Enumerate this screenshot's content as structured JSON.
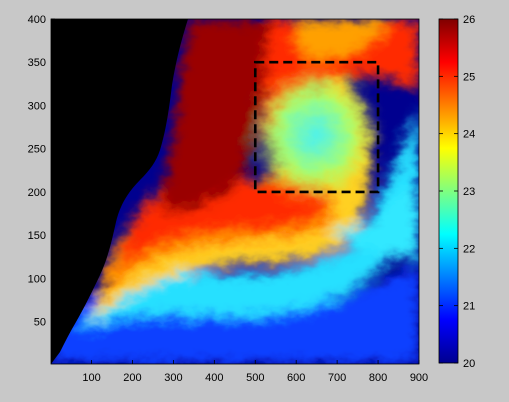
{
  "chart_data": {
    "type": "heatmap",
    "title": "",
    "xlabel": "",
    "ylabel": "",
    "xlim": [
      1,
      900
    ],
    "ylim": [
      1,
      400
    ],
    "x_ticks": [
      "100",
      "200",
      "300",
      "400",
      "500",
      "600",
      "700",
      "800",
      "900"
    ],
    "y_ticks": [
      "50",
      "100",
      "150",
      "200",
      "250",
      "300",
      "350",
      "400"
    ],
    "colorbar": {
      "range": [
        20,
        26
      ],
      "ticks": [
        "20",
        "21",
        "22",
        "23",
        "24",
        "25",
        "26"
      ],
      "colormap": "jet"
    },
    "land_color": "#000000",
    "annotation": {
      "type": "dashed-rectangle",
      "x": [
        500,
        800
      ],
      "y": [
        200,
        350
      ],
      "color": "#000000"
    },
    "field_description": "Sea surface temperature field; land (black) on left, warm dark red coastal band, cool blue toward bottom, yellow-cyan region inside box",
    "colors": {
      "dark_red": "#8b0000",
      "red": "#ff2000",
      "orange": "#ff9000",
      "yellow": "#ffff30",
      "cyan": "#30e8ff",
      "blue": "#1050ff",
      "dark_blue": "#00008f"
    }
  }
}
